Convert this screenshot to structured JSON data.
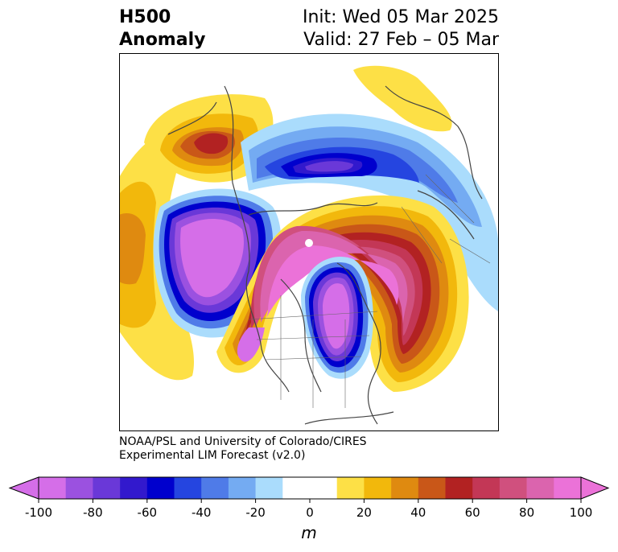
{
  "title": {
    "line1": "H500",
    "line2": "Anomaly",
    "init": "Init: Wed 05 Mar 2025",
    "valid": "Valid: 27 Feb – 05 Mar"
  },
  "credit": {
    "line1": "NOAA/PSL and University of Colorado/CIRES",
    "line2": "Experimental LIM Forecast (v2.0)"
  },
  "colorbar": {
    "unit": "m",
    "ticks": [
      "-100",
      "-80",
      "-60",
      "-40",
      "-20",
      "0",
      "20",
      "40",
      "60",
      "80",
      "100"
    ],
    "colors": [
      "#d56ee8",
      "#9b51e0",
      "#6a38d8",
      "#3219cd",
      "#0000cd",
      "#2545e0",
      "#4f7be8",
      "#74abf2",
      "#aadcfc",
      "#ffffff",
      "#ffffff",
      "#fde046",
      "#f2b80c",
      "#df8a10",
      "#c95718",
      "#b22222",
      "#c33756",
      "#d0507e",
      "#db64ae",
      "#eb72d8"
    ],
    "under_color": "#d56ee8",
    "over_color": "#eb72d8"
  },
  "map": {
    "projection": "north-polar-stereographic",
    "field": "500 hPa geopotential height anomaly"
  }
}
